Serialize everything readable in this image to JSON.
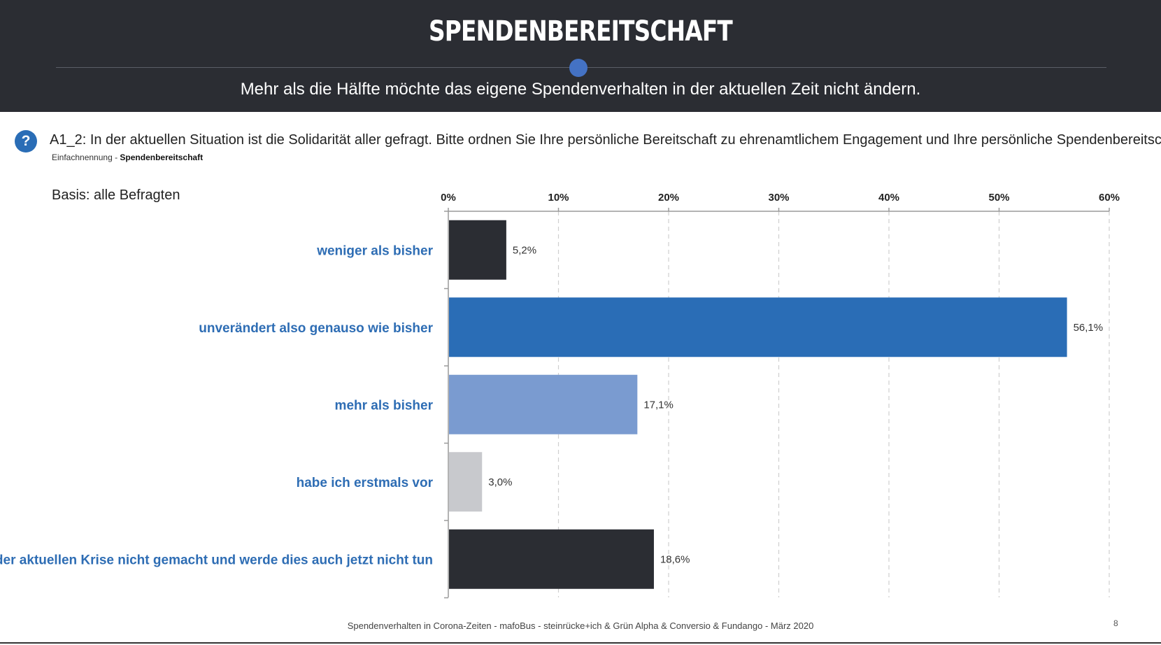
{
  "header": {
    "title": "SPENDENBEREITSCHAFT",
    "subtitle": "Mehr als die Hälfte möchte das eigene Spendenverhalten in der aktuellen Zeit nicht ändern."
  },
  "question": {
    "icon": "question-icon",
    "icon_glyph": "?",
    "text": "A1_2: In der aktuellen Situation ist die Solidarität aller gefragt. Bitte ordnen Sie Ihre persönliche Bereitschaft zu ehrenamtlichem Engagement und Ihre persönliche Spendenbereitschaft ein:",
    "meta_prefix": "Einfachnennung  - ",
    "meta_strong": "Spendenbereitschaft"
  },
  "basis": "Basis: alle Befragten",
  "chart_data": {
    "type": "bar",
    "orientation": "horizontal",
    "categories": [
      "weniger als bisher",
      "unverändert also genauso wie bisher",
      "mehr als bisher",
      "habe ich erstmals vor",
      "habe ich vor der aktuellen Krise nicht gemacht und werde dies auch jetzt nicht tun"
    ],
    "values": [
      5.2,
      56.1,
      17.1,
      3.0,
      18.6
    ],
    "value_labels": [
      "5,2%",
      "56,1%",
      "17,1%",
      "3,0%",
      "18,6%"
    ],
    "bar_colors": [
      "#2b2d33",
      "#2a6db6",
      "#7a9bd0",
      "#c8c9cd",
      "#2b2d33"
    ],
    "xlim": [
      0,
      60
    ],
    "xticks": [
      0,
      10,
      20,
      30,
      40,
      50,
      60
    ],
    "xtick_labels": [
      "0%",
      "10%",
      "20%",
      "30%",
      "40%",
      "50%",
      "60%"
    ],
    "axis_position": "top",
    "grid": "vertical-dashed"
  },
  "footer": {
    "text": "Spendenverhalten  in Corona-Zeiten - mafoBus - steinrücke+ich & Grün Alpha & Conversio & Fundango - März 2020",
    "page": "8"
  }
}
